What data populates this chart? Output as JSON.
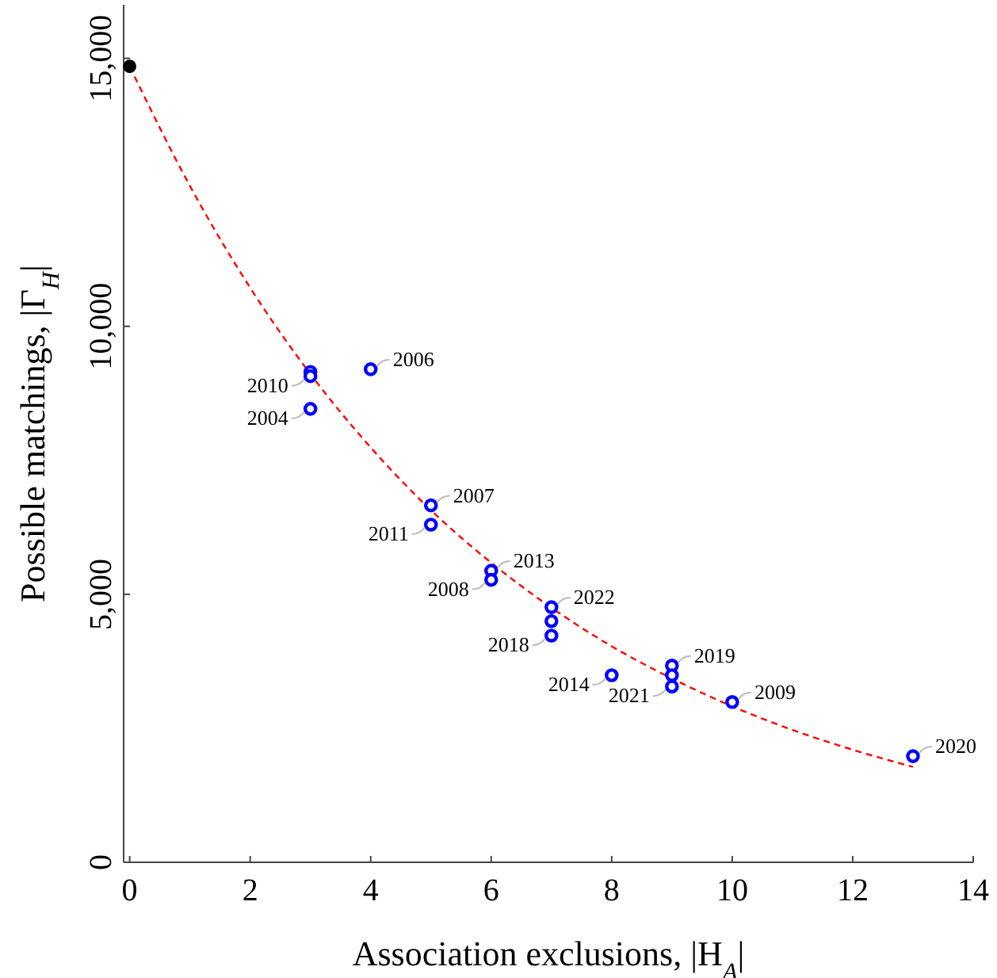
{
  "chart_data": {
    "type": "scatter",
    "xlabel": "Association exclusions, |H$_{A}$|",
    "ylabel": "Possible matchings, |Γ$_{H}$|",
    "xlim": [
      -0.1,
      14
    ],
    "xticks": [
      0,
      2,
      4,
      6,
      8,
      10,
      12,
      14
    ],
    "ylim": [
      0,
      16000
    ],
    "yticks": [
      {
        "value": 0,
        "label": "0"
      },
      {
        "value": 5000,
        "label": "5,000"
      },
      {
        "value": 10000,
        "label": "10,000"
      },
      {
        "value": 15000,
        "label": "15,000"
      }
    ],
    "grid": false,
    "marker": "circle",
    "series": [
      {
        "type": "line",
        "color": "#ff0000",
        "line_style": "dashed",
        "marker": "none",
        "x": [
          0,
          1,
          2,
          3,
          4,
          5,
          6,
          7,
          8,
          9,
          10,
          11,
          12,
          13
        ],
        "values": [
          14850,
          12620,
          10720,
          9110,
          7740,
          6570,
          5590,
          4750,
          4030,
          3430,
          2910,
          2470,
          2100,
          1780
        ]
      },
      {
        "color": "#000000",
        "x": [
          0
        ],
        "values": [
          14850
        ]
      },
      {
        "color": "#0000ff",
        "x": [
          3,
          3,
          3,
          4,
          5,
          5,
          6,
          6,
          7,
          7,
          7,
          8,
          9,
          9,
          9,
          10,
          13
        ],
        "values": [
          9150,
          9070,
          8460,
          9200,
          6660,
          6300,
          5440,
          5270,
          4760,
          4500,
          4230,
          3490,
          3670,
          3490,
          3280,
          2990,
          1980
        ]
      }
    ],
    "annotations": [
      {
        "text": "2010",
        "x": 3,
        "y": 9070
      },
      {
        "text": "2004",
        "x": 3,
        "y": 8460
      },
      {
        "text": "2006",
        "x": 4,
        "y": 9200
      },
      {
        "text": "2007",
        "x": 5,
        "y": 6660
      },
      {
        "text": "2011",
        "x": 5,
        "y": 6300
      },
      {
        "text": "2013",
        "x": 6,
        "y": 5440
      },
      {
        "text": "2008",
        "x": 6,
        "y": 5270
      },
      {
        "text": "2022",
        "x": 7,
        "y": 4760
      },
      {
        "text": "2018",
        "x": 7,
        "y": 4230
      },
      {
        "text": "2014",
        "x": 8,
        "y": 3490
      },
      {
        "text": "2019",
        "x": 9,
        "y": 3670
      },
      {
        "text": "2021",
        "x": 9,
        "y": 3280
      },
      {
        "text": "2009",
        "x": 10,
        "y": 2990
      },
      {
        "text": "2020",
        "x": 13,
        "y": 1980
      }
    ]
  }
}
